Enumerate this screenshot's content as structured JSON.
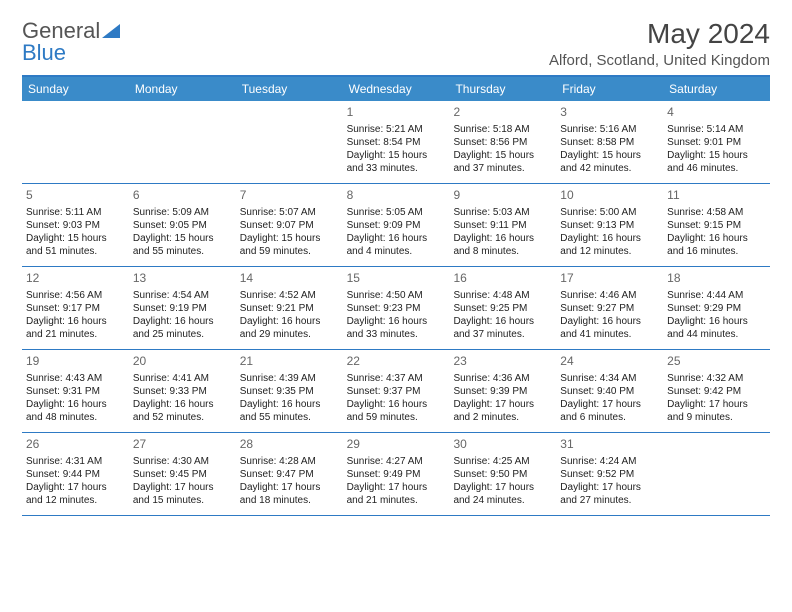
{
  "logo": {
    "text1": "General",
    "text2": "Blue",
    "accent_color": "#2e7ac4"
  },
  "title": "May 2024",
  "location": "Alford, Scotland, United Kingdom",
  "colors": {
    "header_bg": "#3a8bc9",
    "header_text": "#ffffff",
    "border": "#2e7ac4",
    "body_text": "#222222",
    "daynum_text": "#666666",
    "background": "#ffffff"
  },
  "typography": {
    "title_fontsize": 28,
    "location_fontsize": 15,
    "dayhead_fontsize": 12,
    "daynum_fontsize": 12,
    "cell_fontsize": 10
  },
  "day_headers": [
    "Sunday",
    "Monday",
    "Tuesday",
    "Wednesday",
    "Thursday",
    "Friday",
    "Saturday"
  ],
  "weeks": [
    [
      null,
      null,
      null,
      {
        "n": "1",
        "sunrise": "5:21 AM",
        "sunset": "8:54 PM",
        "daylight": "15 hours and 33 minutes."
      },
      {
        "n": "2",
        "sunrise": "5:18 AM",
        "sunset": "8:56 PM",
        "daylight": "15 hours and 37 minutes."
      },
      {
        "n": "3",
        "sunrise": "5:16 AM",
        "sunset": "8:58 PM",
        "daylight": "15 hours and 42 minutes."
      },
      {
        "n": "4",
        "sunrise": "5:14 AM",
        "sunset": "9:01 PM",
        "daylight": "15 hours and 46 minutes."
      }
    ],
    [
      {
        "n": "5",
        "sunrise": "5:11 AM",
        "sunset": "9:03 PM",
        "daylight": "15 hours and 51 minutes."
      },
      {
        "n": "6",
        "sunrise": "5:09 AM",
        "sunset": "9:05 PM",
        "daylight": "15 hours and 55 minutes."
      },
      {
        "n": "7",
        "sunrise": "5:07 AM",
        "sunset": "9:07 PM",
        "daylight": "15 hours and 59 minutes."
      },
      {
        "n": "8",
        "sunrise": "5:05 AM",
        "sunset": "9:09 PM",
        "daylight": "16 hours and 4 minutes."
      },
      {
        "n": "9",
        "sunrise": "5:03 AM",
        "sunset": "9:11 PM",
        "daylight": "16 hours and 8 minutes."
      },
      {
        "n": "10",
        "sunrise": "5:00 AM",
        "sunset": "9:13 PM",
        "daylight": "16 hours and 12 minutes."
      },
      {
        "n": "11",
        "sunrise": "4:58 AM",
        "sunset": "9:15 PM",
        "daylight": "16 hours and 16 minutes."
      }
    ],
    [
      {
        "n": "12",
        "sunrise": "4:56 AM",
        "sunset": "9:17 PM",
        "daylight": "16 hours and 21 minutes."
      },
      {
        "n": "13",
        "sunrise": "4:54 AM",
        "sunset": "9:19 PM",
        "daylight": "16 hours and 25 minutes."
      },
      {
        "n": "14",
        "sunrise": "4:52 AM",
        "sunset": "9:21 PM",
        "daylight": "16 hours and 29 minutes."
      },
      {
        "n": "15",
        "sunrise": "4:50 AM",
        "sunset": "9:23 PM",
        "daylight": "16 hours and 33 minutes."
      },
      {
        "n": "16",
        "sunrise": "4:48 AM",
        "sunset": "9:25 PM",
        "daylight": "16 hours and 37 minutes."
      },
      {
        "n": "17",
        "sunrise": "4:46 AM",
        "sunset": "9:27 PM",
        "daylight": "16 hours and 41 minutes."
      },
      {
        "n": "18",
        "sunrise": "4:44 AM",
        "sunset": "9:29 PM",
        "daylight": "16 hours and 44 minutes."
      }
    ],
    [
      {
        "n": "19",
        "sunrise": "4:43 AM",
        "sunset": "9:31 PM",
        "daylight": "16 hours and 48 minutes."
      },
      {
        "n": "20",
        "sunrise": "4:41 AM",
        "sunset": "9:33 PM",
        "daylight": "16 hours and 52 minutes."
      },
      {
        "n": "21",
        "sunrise": "4:39 AM",
        "sunset": "9:35 PM",
        "daylight": "16 hours and 55 minutes."
      },
      {
        "n": "22",
        "sunrise": "4:37 AM",
        "sunset": "9:37 PM",
        "daylight": "16 hours and 59 minutes."
      },
      {
        "n": "23",
        "sunrise": "4:36 AM",
        "sunset": "9:39 PM",
        "daylight": "17 hours and 2 minutes."
      },
      {
        "n": "24",
        "sunrise": "4:34 AM",
        "sunset": "9:40 PM",
        "daylight": "17 hours and 6 minutes."
      },
      {
        "n": "25",
        "sunrise": "4:32 AM",
        "sunset": "9:42 PM",
        "daylight": "17 hours and 9 minutes."
      }
    ],
    [
      {
        "n": "26",
        "sunrise": "4:31 AM",
        "sunset": "9:44 PM",
        "daylight": "17 hours and 12 minutes."
      },
      {
        "n": "27",
        "sunrise": "4:30 AM",
        "sunset": "9:45 PM",
        "daylight": "17 hours and 15 minutes."
      },
      {
        "n": "28",
        "sunrise": "4:28 AM",
        "sunset": "9:47 PM",
        "daylight": "17 hours and 18 minutes."
      },
      {
        "n": "29",
        "sunrise": "4:27 AM",
        "sunset": "9:49 PM",
        "daylight": "17 hours and 21 minutes."
      },
      {
        "n": "30",
        "sunrise": "4:25 AM",
        "sunset": "9:50 PM",
        "daylight": "17 hours and 24 minutes."
      },
      {
        "n": "31",
        "sunrise": "4:24 AM",
        "sunset": "9:52 PM",
        "daylight": "17 hours and 27 minutes."
      },
      null
    ]
  ],
  "labels": {
    "sunrise": "Sunrise:",
    "sunset": "Sunset:",
    "daylight": "Daylight:"
  }
}
